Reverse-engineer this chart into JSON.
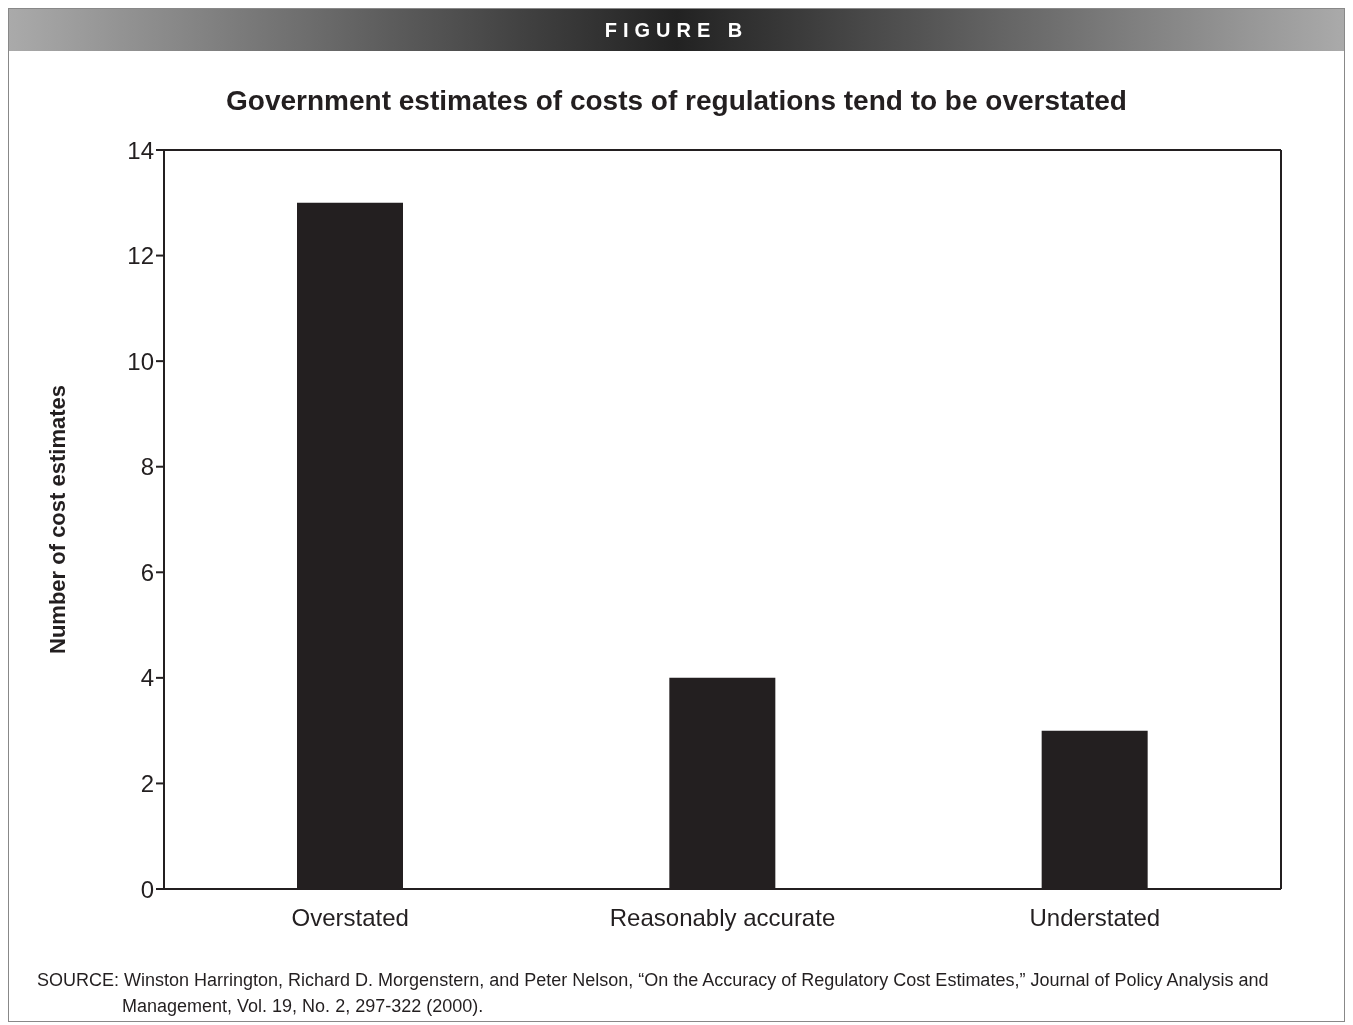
{
  "chart_data": {
    "type": "bar",
    "title": "FIGURE B",
    "subtitle": "Government estimates of costs of regulations tend to be overstated",
    "ylabel": "Number of cost estimates",
    "categories": [
      "Overstated",
      "Reasonably accurate",
      "Understated"
    ],
    "values": [
      13,
      4,
      3
    ],
    "color": "#231f20",
    "ylim": [
      0,
      14
    ],
    "yticks": [
      0,
      2,
      4,
      6,
      8,
      10,
      12,
      14
    ],
    "grid": false,
    "legend": false,
    "annotations": [
      "SOURCE: Winston Harrington, Richard D. Morgenstern, and Peter Nelson, “On the Accuracy of Regulatory Cost Estimates,” Journal of Policy Analysis and Management, Vol. 19, No. 2, 297-322 (2000)."
    ]
  }
}
